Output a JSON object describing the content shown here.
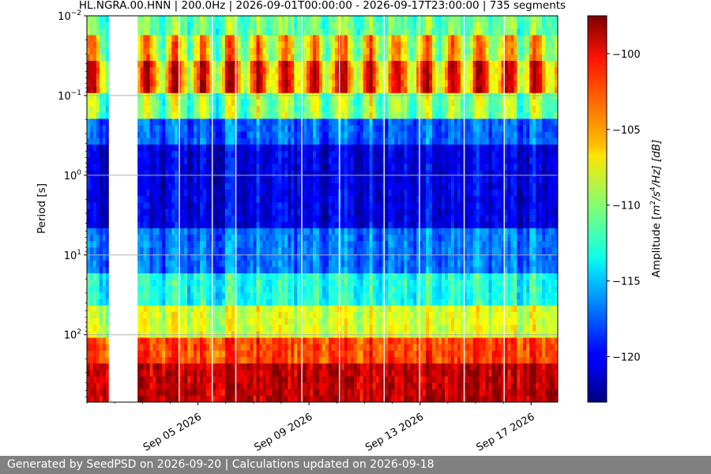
{
  "chart_data": {
    "type": "heatmap",
    "title": "HL.NGRA.00.HNN | 200.0Hz | 2026-09-01T00:00:00 - 2026-09-17T23:00:00 | 735 segments",
    "ylabel": "Period [s]",
    "xlabel": "",
    "colorbar_label": "Amplitude [m²/s⁴/Hz] [dB]",
    "colorbar_label_parts": {
      "pre": "Amplitude [",
      "m": "m",
      "e1": "2",
      "mid": "/s",
      "e2": "4",
      "post": "/Hz] [dB]"
    },
    "x_range": [
      "2026-09-01T00:00:00",
      "2026-09-17T23:00:00"
    ],
    "x_ticks": [
      {
        "date": "2026-09-05",
        "label": "Sep 05 2026"
      },
      {
        "date": "2026-09-09",
        "label": "Sep 09 2026"
      },
      {
        "date": "2026-09-13",
        "label": "Sep 13 2026"
      },
      {
        "date": "2026-09-17",
        "label": "Sep 17 2026"
      }
    ],
    "y_scale": "log",
    "y_inverted": true,
    "y_range": [
      0.01,
      700
    ],
    "y_ticks": [
      {
        "value": 0.01,
        "base": "10",
        "exp": "−2"
      },
      {
        "value": 0.1,
        "base": "10",
        "exp": "−1"
      },
      {
        "value": 1,
        "base": "10",
        "exp": "0"
      },
      {
        "value": 10,
        "base": "10",
        "exp": "1"
      },
      {
        "value": 100,
        "base": "10",
        "exp": "2"
      }
    ],
    "grid": true,
    "colorbar": {
      "colormap": "jet",
      "range": [
        -123,
        -97.5
      ],
      "ticks": [
        -100,
        -105,
        -110,
        -115,
        -120
      ],
      "tick_labels": [
        "−100",
        "−105",
        "−110",
        "−115",
        "−120"
      ]
    },
    "data_gaps": [
      {
        "start": "2026-09-01T18:00:00",
        "end": "2026-09-02T19:00:00"
      }
    ],
    "day_night_cycle": "daily high amplitude near 0.1 s period, blue band 0.5-5 s, rising toward long periods"
  },
  "footer": {
    "text": "Generated by SeedPSD on 2026-09-20 | Calculations updated on 2026-09-18"
  }
}
